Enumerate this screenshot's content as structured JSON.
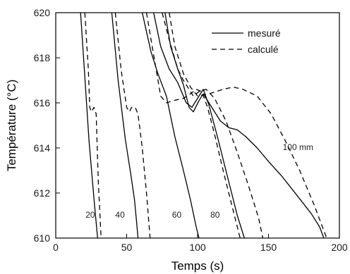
{
  "chart_data": {
    "type": "line",
    "xlabel": "Temps (s)",
    "ylabel": "Température (°C)",
    "xlim": [
      0,
      200
    ],
    "ylim": [
      610,
      620
    ],
    "x_ticks": [
      0,
      50,
      100,
      150,
      200
    ],
    "y_ticks": [
      610,
      612,
      614,
      616,
      618,
      620
    ],
    "x_tick_labels": [
      "0",
      "50",
      "100",
      "150",
      "200"
    ],
    "y_tick_labels": [
      "610",
      "612",
      "614",
      "616",
      "618",
      "620"
    ],
    "grid": false,
    "legend_position": "top-right",
    "legend": [
      {
        "label": "mesuré",
        "style": "solid"
      },
      {
        "label": "calculé",
        "style": "dashed"
      }
    ],
    "curve_labels": [
      {
        "text": "20",
        "x": 21,
        "y": 610.9
      },
      {
        "text": "40",
        "x": 42,
        "y": 610.9
      },
      {
        "text": "60",
        "x": 82,
        "y": 610.9
      },
      {
        "text": "80",
        "x": 109,
        "y": 610.9
      },
      {
        "text": "100 mm",
        "x": 160,
        "y": 613.9
      }
    ],
    "series": [
      {
        "style": "solid",
        "values": [
          [
            17.5,
            620
          ],
          [
            23.5,
            614.3
          ],
          [
            27,
            611.7
          ],
          [
            29.5,
            610
          ]
        ]
      },
      {
        "style": "dashed",
        "values": [
          [
            20.5,
            620
          ],
          [
            23,
            617.5
          ],
          [
            24,
            615.8
          ],
          [
            25,
            615.6
          ],
          [
            26,
            615.7
          ],
          [
            27,
            615.8
          ],
          [
            28.5,
            615.5
          ],
          [
            30,
            612.5
          ],
          [
            32,
            610
          ]
        ]
      },
      {
        "style": "solid",
        "values": [
          [
            39.5,
            620
          ],
          [
            44,
            617
          ],
          [
            49,
            614.4
          ],
          [
            53,
            612.8
          ],
          [
            55.5,
            611.7
          ],
          [
            57,
            610.7
          ],
          [
            58,
            610
          ]
        ]
      },
      {
        "style": "dashed",
        "values": [
          [
            42,
            620
          ],
          [
            46,
            617.5
          ],
          [
            50,
            615.8
          ],
          [
            52,
            615.6
          ],
          [
            53.5,
            615.8
          ],
          [
            56,
            615.8
          ],
          [
            58,
            615.5
          ],
          [
            61,
            614
          ],
          [
            64,
            612
          ],
          [
            66.5,
            610
          ]
        ]
      },
      {
        "style": "solid",
        "values": [
          [
            61,
            620
          ],
          [
            67,
            618.3
          ],
          [
            72,
            617.3
          ],
          [
            78,
            616.3
          ],
          [
            84,
            614.5
          ],
          [
            90,
            613
          ],
          [
            95,
            611.7
          ],
          [
            99,
            610.5
          ],
          [
            101,
            610
          ]
        ]
      },
      {
        "style": "dashed",
        "values": [
          [
            64,
            620
          ],
          [
            68,
            618.5
          ],
          [
            74,
            616.3
          ],
          [
            78,
            616
          ],
          [
            83,
            616.1
          ],
          [
            90,
            616.2
          ],
          [
            95,
            616.4
          ],
          [
            99,
            616.6
          ],
          [
            103,
            616.5
          ],
          [
            107,
            615.8
          ],
          [
            112,
            614.6
          ],
          [
            118,
            613
          ],
          [
            124,
            611.5
          ],
          [
            130,
            610
          ]
        ]
      },
      {
        "style": "solid",
        "values": [
          [
            69,
            620
          ],
          [
            74,
            618.5
          ],
          [
            80,
            617.5
          ],
          [
            86,
            616.9
          ],
          [
            92,
            616
          ],
          [
            96,
            615.8
          ],
          [
            101,
            616.3
          ],
          [
            104,
            616.6
          ],
          [
            108,
            615.9
          ],
          [
            114,
            614.5
          ],
          [
            122,
            612.5
          ],
          [
            128,
            611
          ],
          [
            133,
            610
          ]
        ]
      },
      {
        "style": "dashed",
        "values": [
          [
            75,
            620
          ],
          [
            80,
            618.8
          ],
          [
            86,
            617.5
          ],
          [
            90,
            617
          ],
          [
            94,
            616.6
          ],
          [
            97,
            616.3
          ],
          [
            101,
            616.5
          ],
          [
            106,
            616.6
          ],
          [
            112,
            616.2
          ],
          [
            120,
            615.2
          ],
          [
            128,
            613.8
          ],
          [
            136,
            612.3
          ],
          [
            143,
            610.9
          ],
          [
            146,
            610
          ]
        ]
      },
      {
        "style": "solid",
        "values": [
          [
            77,
            620
          ],
          [
            81,
            618.5
          ],
          [
            86,
            617.5
          ],
          [
            90,
            616.8
          ],
          [
            94,
            615.8
          ],
          [
            97,
            615.6
          ],
          [
            101,
            616.1
          ],
          [
            104,
            616.4
          ],
          [
            110,
            615.8
          ],
          [
            116,
            615.2
          ],
          [
            122,
            614.9
          ],
          [
            128,
            614.8
          ],
          [
            134,
            614.5
          ],
          [
            142,
            614
          ],
          [
            150,
            613.4
          ],
          [
            160,
            612.7
          ],
          [
            170,
            611.9
          ],
          [
            180,
            611.1
          ],
          [
            186,
            610.5
          ],
          [
            189,
            610
          ]
        ]
      },
      {
        "style": "dashed",
        "values": [
          [
            80,
            620
          ],
          [
            84,
            618.5
          ],
          [
            90,
            617.3
          ],
          [
            95,
            616.7
          ],
          [
            100,
            616.3
          ],
          [
            108,
            616.4
          ],
          [
            118,
            616.6
          ],
          [
            125,
            616.7
          ],
          [
            132,
            616.6
          ],
          [
            142,
            616.3
          ],
          [
            152,
            615.5
          ],
          [
            162,
            614.3
          ],
          [
            172,
            613
          ],
          [
            182,
            611.5
          ],
          [
            188,
            610.5
          ],
          [
            191,
            610
          ]
        ]
      }
    ]
  }
}
